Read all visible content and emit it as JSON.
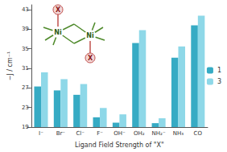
{
  "chart_data": {
    "type": "bar",
    "categories": [
      "I⁻",
      "Br⁻",
      "Cl⁻",
      "F⁻",
      "OH⁻",
      "OH₂",
      "NH₂⁻",
      "NH₃",
      "CO"
    ],
    "series": [
      {
        "name": "1",
        "color": "#36abc4",
        "values": [
          27.3,
          26.5,
          25.6,
          21.0,
          19.9,
          36.2,
          19.8,
          33.2,
          39.8
        ]
      },
      {
        "name": "3",
        "color": "#8ed8e8",
        "values": [
          30.2,
          28.8,
          27.8,
          22.9,
          21.6,
          38.8,
          20.8,
          35.5,
          41.8
        ]
      }
    ],
    "x_label": "Ligand Field Strength of \"X\"",
    "y_label": "−J / cm⁻¹",
    "ylim": [
      19,
      44
    ],
    "yticks": [
      19,
      23,
      27,
      31,
      35,
      39,
      43
    ],
    "grid": false,
    "legend": "right",
    "annotations": [
      "Ni",
      "Ni",
      "X",
      "X"
    ]
  }
}
